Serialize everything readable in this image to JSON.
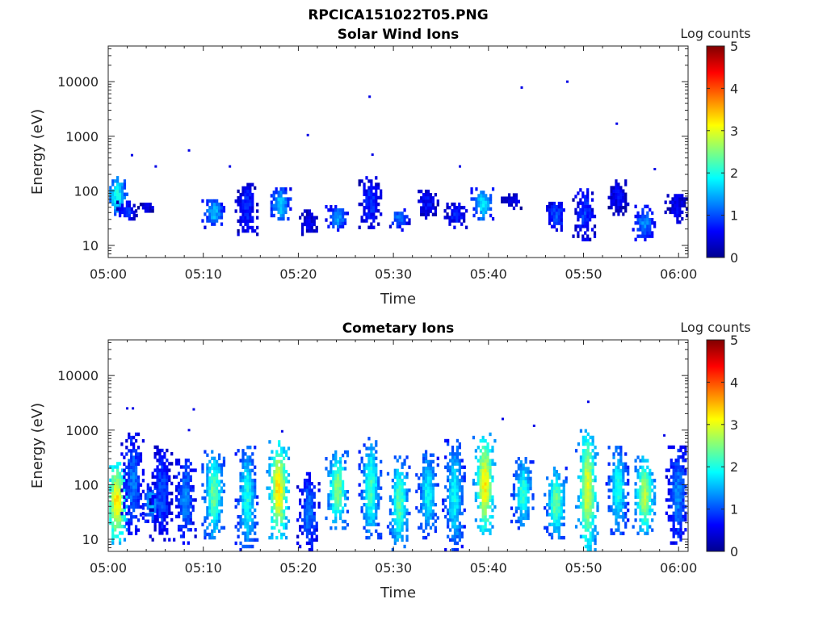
{
  "figure_title": "RPCICA151022T05.PNG",
  "colorbar": {
    "label": "Log counts",
    "ticks": [
      "0",
      "1",
      "2",
      "3",
      "4",
      "5"
    ],
    "range": [
      0,
      5
    ],
    "colormap": "jet"
  },
  "chart_data": [
    {
      "type": "heatmap",
      "title": "Solar Wind Ions",
      "xlabel": "Time",
      "ylabel": "Energy (eV)",
      "xticks": [
        "05:00",
        "05:10",
        "05:20",
        "05:30",
        "05:40",
        "05:50",
        "06:00"
      ],
      "xlim_minutes": [
        0,
        61
      ],
      "yticks": [
        "10",
        "100",
        "1000",
        "10000"
      ],
      "ylim": [
        6,
        45000
      ],
      "yscale": "log",
      "grid": false,
      "clusters": [
        {
          "t": 0.8,
          "e_low": 35,
          "e_high": 180,
          "peak": 2.0
        },
        {
          "t": 1.8,
          "e_low": 25,
          "e_high": 60,
          "peak": 0.9
        },
        {
          "t": 4.0,
          "e_low": 40,
          "e_high": 60,
          "peak": 0.5
        },
        {
          "t": 11.0,
          "e_low": 20,
          "e_high": 70,
          "peak": 1.6
        },
        {
          "t": 14.5,
          "e_low": 15,
          "e_high": 150,
          "peak": 0.8
        },
        {
          "t": 18.0,
          "e_low": 25,
          "e_high": 110,
          "peak": 1.7
        },
        {
          "t": 21.0,
          "e_low": 15,
          "e_high": 40,
          "peak": 0.6
        },
        {
          "t": 24.0,
          "e_low": 18,
          "e_high": 50,
          "peak": 1.4
        },
        {
          "t": 27.5,
          "e_low": 20,
          "e_high": 180,
          "peak": 0.9
        },
        {
          "t": 30.5,
          "e_low": 18,
          "e_high": 45,
          "peak": 1.2
        },
        {
          "t": 33.5,
          "e_low": 30,
          "e_high": 100,
          "peak": 0.7
        },
        {
          "t": 36.5,
          "e_low": 20,
          "e_high": 60,
          "peak": 0.8
        },
        {
          "t": 39.3,
          "e_low": 25,
          "e_high": 110,
          "peak": 1.8
        },
        {
          "t": 42.5,
          "e_low": 45,
          "e_high": 90,
          "peak": 0.6
        },
        {
          "t": 47.0,
          "e_low": 18,
          "e_high": 60,
          "peak": 1.0
        },
        {
          "t": 50.0,
          "e_low": 12,
          "e_high": 110,
          "peak": 0.9
        },
        {
          "t": 53.5,
          "e_low": 35,
          "e_high": 150,
          "peak": 0.6
        },
        {
          "t": 56.3,
          "e_low": 12,
          "e_high": 50,
          "peak": 1.3
        },
        {
          "t": 59.7,
          "e_low": 25,
          "e_high": 100,
          "peak": 0.6
        }
      ],
      "points": [
        {
          "t": 2.5,
          "e": 450
        },
        {
          "t": 8.5,
          "e": 550
        },
        {
          "t": 21.0,
          "e": 1050
        },
        {
          "t": 27.5,
          "e": 5300
        },
        {
          "t": 43.5,
          "e": 7800
        },
        {
          "t": 48.3,
          "e": 10000
        },
        {
          "t": 53.5,
          "e": 1700
        },
        {
          "t": 5.0,
          "e": 280
        },
        {
          "t": 12.8,
          "e": 280
        },
        {
          "t": 37.0,
          "e": 280
        },
        {
          "t": 57.5,
          "e": 250
        },
        {
          "t": 27.8,
          "e": 460
        }
      ]
    },
    {
      "type": "heatmap",
      "title": "Cometary Ions",
      "xlabel": "Time",
      "ylabel": "Energy (eV)",
      "xticks": [
        "05:00",
        "05:10",
        "05:20",
        "05:30",
        "05:40",
        "05:50",
        "06:00"
      ],
      "xlim_minutes": [
        0,
        61
      ],
      "yticks": [
        "10",
        "100",
        "1000",
        "10000"
      ],
      "ylim": [
        6,
        45000
      ],
      "yscale": "log",
      "grid": false,
      "clusters": [
        {
          "t": 0.8,
          "e_low": 8,
          "e_high": 250,
          "peak": 3.3
        },
        {
          "t": 2.5,
          "e_low": 12,
          "e_high": 800,
          "peak": 1.2
        },
        {
          "t": 4.5,
          "e_low": 20,
          "e_high": 100,
          "peak": 1.6
        },
        {
          "t": 5.5,
          "e_low": 8,
          "e_high": 500,
          "peak": 1.0
        },
        {
          "t": 8.0,
          "e_low": 8,
          "e_high": 300,
          "peak": 1.3
        },
        {
          "t": 11.0,
          "e_low": 10,
          "e_high": 400,
          "peak": 2.4
        },
        {
          "t": 14.5,
          "e_low": 6,
          "e_high": 500,
          "peak": 2.0
        },
        {
          "t": 17.8,
          "e_low": 10,
          "e_high": 600,
          "peak": 3.3
        },
        {
          "t": 21.0,
          "e_low": 6,
          "e_high": 150,
          "peak": 1.2
        },
        {
          "t": 24.0,
          "e_low": 15,
          "e_high": 400,
          "peak": 2.6
        },
        {
          "t": 27.5,
          "e_low": 10,
          "e_high": 700,
          "peak": 2.2
        },
        {
          "t": 30.5,
          "e_low": 6,
          "e_high": 300,
          "peak": 2.3
        },
        {
          "t": 33.5,
          "e_low": 10,
          "e_high": 400,
          "peak": 1.9
        },
        {
          "t": 36.3,
          "e_low": 6,
          "e_high": 600,
          "peak": 1.9
        },
        {
          "t": 39.5,
          "e_low": 12,
          "e_high": 800,
          "peak": 3.2
        },
        {
          "t": 43.5,
          "e_low": 15,
          "e_high": 300,
          "peak": 2.1
        },
        {
          "t": 47.0,
          "e_low": 10,
          "e_high": 200,
          "peak": 2.4
        },
        {
          "t": 50.3,
          "e_low": 6,
          "e_high": 1000,
          "peak": 3.0
        },
        {
          "t": 53.5,
          "e_low": 12,
          "e_high": 500,
          "peak": 2.0
        },
        {
          "t": 56.3,
          "e_low": 12,
          "e_high": 300,
          "peak": 2.8
        },
        {
          "t": 59.8,
          "e_low": 8,
          "e_high": 500,
          "peak": 1.3
        }
      ],
      "points": [
        {
          "t": 2.0,
          "e": 2500
        },
        {
          "t": 2.6,
          "e": 2500
        },
        {
          "t": 9.0,
          "e": 2400
        },
        {
          "t": 8.5,
          "e": 1000
        },
        {
          "t": 18.3,
          "e": 950
        },
        {
          "t": 41.5,
          "e": 1600
        },
        {
          "t": 44.8,
          "e": 1200
        },
        {
          "t": 50.5,
          "e": 3300
        },
        {
          "t": 58.5,
          "e": 800
        }
      ]
    }
  ]
}
